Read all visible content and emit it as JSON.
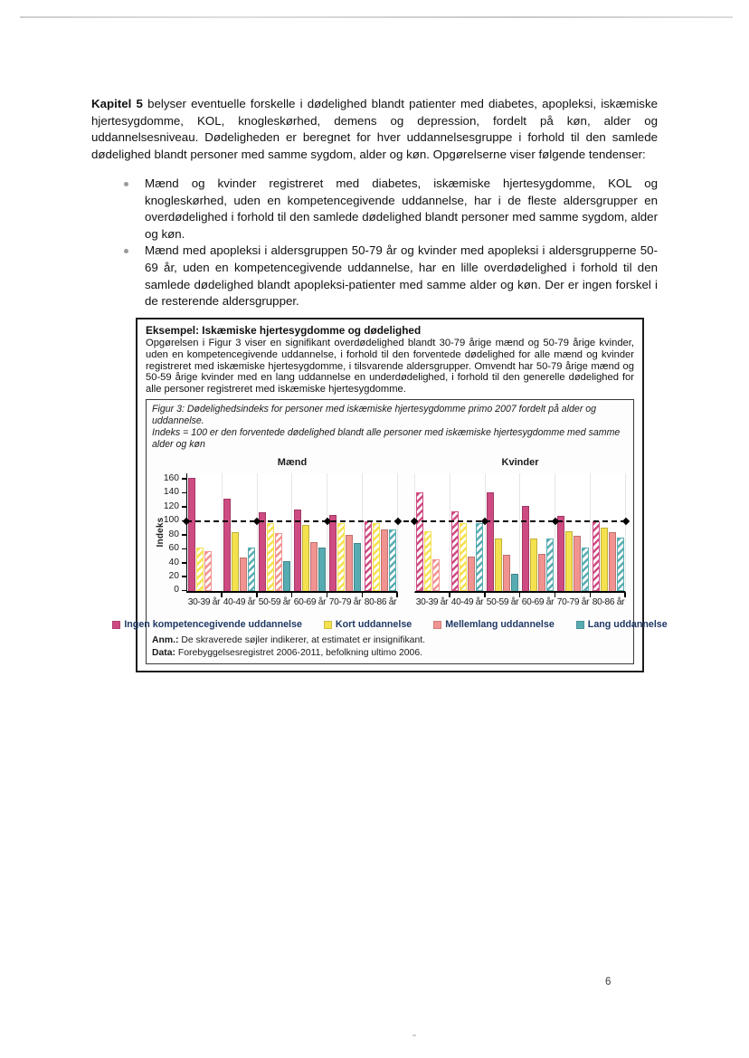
{
  "page": {
    "number": "6"
  },
  "paragraph": {
    "lead": "Kapitel 5",
    "text": " belyser eventuelle forskelle i dødelighed blandt patienter med diabetes, apopleksi, iskæmiske hjertesygdomme, KOL, knogleskørhed, demens og depression, fordelt på køn, alder og uddannelsesniveau. Dødeligheden er beregnet for hver uddannelsesgruppe i forhold til den samlede dødelighed blandt personer med samme sygdom, alder og køn. Opgørelserne viser følgende tendenser:"
  },
  "bullets": [
    "Mænd og kvinder registreret med diabetes, iskæmiske hjertesygdomme, KOL og knogleskørhed, uden en kompetencegivende uddannelse, har i de fleste aldersgrupper en overdødelighed i forhold til den samlede dødelighed blandt personer med samme sygdom, alder og køn.",
    "Mænd med apopleksi i aldersgruppen 50-79 år og kvinder med apopleksi i aldersgrupperne 50-69 år, uden en kompetencegivende uddannelse, har en lille overdødelighed i forhold til den samlede dødelighed blandt apopleksi-patienter med samme alder og køn. Der er ingen forskel i de resterende aldersgrupper."
  ],
  "example_box": {
    "title": "Eksempel: Iskæmiske hjertesygdomme og dødelighed",
    "body": "Opgørelsen i Figur 3 viser en signifikant overdødelighed blandt 30-79 årige mænd og 50-79 årige kvinder, uden en kompetencegivende uddannelse, i forhold til den forventede dødelighed for alle mænd og kvinder registreret med iskæmiske hjertesygdomme, i tilsvarende aldersgrupper. Omvendt har 50-79 årige mænd og 50-59 årige kvinder med en lang uddannelse en underdødelighed, i forhold til den generelle dødelighed for alle personer registreret med iskæmiske hjertesygdomme.",
    "caption_line1": "Figur 3: Dødelighedsindeks for personer med iskæmiske hjertesygdomme primo 2007 fordelt på alder og uddannelse.",
    "caption_line2": "Indeks = 100 er den forventede dødelighed blandt alle personer med iskæmiske hjertesygdomme med samme alder og køn",
    "notes": {
      "anm_label": "Anm.:",
      "anm_text": " De skraverede søjler indikerer, at estimatet er insignifikant.",
      "data_label": "Data:",
      "data_text": " Forebyggelsesregistret 2006-2011, befolkning ultimo 2006."
    }
  },
  "chart_data": {
    "type": "bar",
    "ylabel": "Indeks",
    "yticks": [
      0,
      20,
      40,
      60,
      80,
      100,
      120,
      140,
      160
    ],
    "ylim": [
      0,
      168
    ],
    "reference_line": 100,
    "grid": "vertical-light",
    "legend_position": "bottom",
    "note": "hatched bars = insignificant estimate",
    "colors": {
      "ingen": "#CE4B82",
      "kort": "#F4E14E",
      "mellemlang": "#F19390",
      "lang": "#57ACB2"
    },
    "legend": [
      {
        "label": "Ingen kompetencegivende uddannelse",
        "color_key": "ingen"
      },
      {
        "label": "Kort uddannelse",
        "color_key": "kort"
      },
      {
        "label": "Mellemlang uddannelse",
        "color_key": "mellemlang"
      },
      {
        "label": "Lang uddannelse",
        "color_key": "lang"
      }
    ],
    "categories": [
      "30-39 år",
      "40-49 år",
      "50-59 år",
      "60-69 år",
      "70-79 år",
      "80-86 år"
    ],
    "panels": [
      {
        "title": "Mænd",
        "series": [
          {
            "name": "Ingen kompetencegivende uddannelse",
            "color_key": "ingen",
            "values": [
              162,
              133,
              113,
              117,
              109,
              100
            ],
            "hatched": [
              false,
              false,
              false,
              false,
              false,
              true
            ]
          },
          {
            "name": "Kort uddannelse",
            "color_key": "kort",
            "values": [
              62,
              85,
              97,
              95,
              97,
              97
            ],
            "hatched": [
              true,
              false,
              true,
              false,
              true,
              true
            ]
          },
          {
            "name": "Mellemlang uddannelse",
            "color_key": "mellemlang",
            "values": [
              57,
              49,
              83,
              70,
              81,
              88
            ],
            "hatched": [
              true,
              false,
              true,
              false,
              false,
              false
            ]
          },
          {
            "name": "Lang uddannelse",
            "color_key": "lang",
            "values": [
              null,
              62,
              43,
              62,
              69,
              89
            ],
            "hatched": [
              false,
              true,
              false,
              false,
              false,
              true
            ]
          }
        ]
      },
      {
        "title": "Kvinder",
        "series": [
          {
            "name": "Ingen kompetencegivende uddannelse",
            "color_key": "ingen",
            "values": [
              141,
              114,
              141,
              122,
              108,
              100
            ],
            "hatched": [
              true,
              true,
              false,
              false,
              false,
              true
            ]
          },
          {
            "name": "Kort uddannelse",
            "color_key": "kort",
            "values": [
              86,
              97,
              76,
              76,
              86,
              91
            ],
            "hatched": [
              true,
              true,
              false,
              false,
              false,
              false
            ]
          },
          {
            "name": "Mellemlang uddannelse",
            "color_key": "mellemlang",
            "values": [
              46,
              50,
              52,
              53,
              80,
              84
            ],
            "hatched": [
              true,
              false,
              false,
              false,
              false,
              false
            ]
          },
          {
            "name": "Lang uddannelse",
            "color_key": "lang",
            "values": [
              null,
              98,
              25,
              75,
              63,
              77
            ],
            "hatched": [
              false,
              true,
              false,
              true,
              true,
              true
            ]
          }
        ]
      }
    ]
  }
}
